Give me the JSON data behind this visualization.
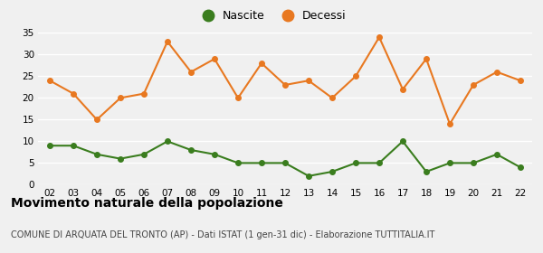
{
  "years": [
    "02",
    "03",
    "04",
    "05",
    "06",
    "07",
    "08",
    "09",
    "10",
    "11",
    "12",
    "13",
    "14",
    "15",
    "16",
    "17",
    "18",
    "19",
    "20",
    "21",
    "22"
  ],
  "nascite": [
    9,
    9,
    7,
    6,
    7,
    10,
    8,
    7,
    5,
    5,
    5,
    2,
    3,
    5,
    5,
    10,
    3,
    5,
    5,
    7,
    4
  ],
  "decessi": [
    24,
    21,
    15,
    20,
    21,
    33,
    26,
    29,
    20,
    28,
    23,
    24,
    20,
    25,
    34,
    22,
    29,
    14,
    23,
    26,
    24
  ],
  "nascite_color": "#3a7d1e",
  "decessi_color": "#e87820",
  "title": "Movimento naturale della popolazione",
  "subtitle": "COMUNE DI ARQUATA DEL TRONTO (AP) - Dati ISTAT (1 gen-31 dic) - Elaborazione TUTTITALIA.IT",
  "legend_nascite": "Nascite",
  "legend_decessi": "Decessi",
  "ylim": [
    0,
    35
  ],
  "yticks": [
    0,
    5,
    10,
    15,
    20,
    25,
    30,
    35
  ],
  "bg_color": "#f0f0f0",
  "grid_color": "#ffffff",
  "title_fontsize": 10,
  "subtitle_fontsize": 7,
  "marker_size": 4,
  "linewidth": 1.5
}
